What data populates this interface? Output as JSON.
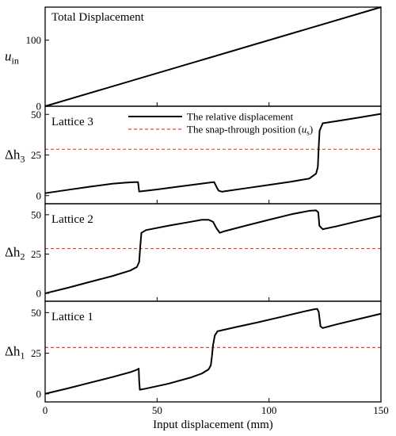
{
  "chart_data": [
    {
      "type": "line",
      "panel_label": "Total Displacement",
      "ylabel": {
        "base": "u",
        "sub": "in"
      },
      "ylim": [
        0,
        150
      ],
      "yticks": [
        0,
        100
      ],
      "xlim": [
        0,
        150
      ],
      "series": [
        {
          "points": [
            [
              0,
              0
            ],
            [
              150,
              150
            ]
          ]
        }
      ]
    },
    {
      "type": "line",
      "panel_label": "Lattice 3",
      "ylabel": {
        "base": "Δh",
        "sub": "3"
      },
      "ylim": [
        -5,
        55
      ],
      "yticks": [
        0,
        25,
        50
      ],
      "xlim": [
        0,
        150
      ],
      "reference_line": {
        "y": 28.5
      },
      "legend": {
        "placement": "top-center",
        "entries": [
          {
            "label": "The relative displacement",
            "style": "solid",
            "color": "#000000"
          },
          {
            "label_pre": "The snap-through position (",
            "label_italic": "u",
            "label_sub": "s",
            "label_post": ")",
            "style": "dashed",
            "color": "#e8403a"
          }
        ]
      },
      "series": [
        {
          "points": [
            [
              0,
              1.5
            ],
            [
              10,
              3.5
            ],
            [
              20,
              5.5
            ],
            [
              30,
              7.3
            ],
            [
              36,
              8.0
            ],
            [
              40,
              8.3
            ],
            [
              41.5,
              8.3
            ],
            [
              42,
              2.5
            ],
            [
              50,
              3.8
            ],
            [
              60,
              5.6
            ],
            [
              70,
              7.4
            ],
            [
              74,
              8.1
            ],
            [
              75.5,
              8.3
            ],
            [
              76.5,
              5.5
            ],
            [
              77.5,
              3.0
            ],
            [
              79,
              2.4
            ],
            [
              80,
              2.6
            ],
            [
              90,
              4.6
            ],
            [
              100,
              6.6
            ],
            [
              110,
              8.6
            ],
            [
              118,
              10.5
            ],
            [
              121,
              13.5
            ],
            [
              121.8,
              17.5
            ],
            [
              122.2,
              30
            ],
            [
              122.6,
              40
            ],
            [
              124,
              44.5
            ],
            [
              130,
              45.8
            ],
            [
              140,
              48.0
            ],
            [
              150,
              50.3
            ]
          ]
        }
      ]
    },
    {
      "type": "line",
      "panel_label": "Lattice 2",
      "ylabel": {
        "base": "Δh",
        "sub": "2"
      },
      "ylim": [
        -5,
        57
      ],
      "yticks": [
        0,
        25,
        50
      ],
      "xlim": [
        0,
        150
      ],
      "reference_line": {
        "y": 28.5
      },
      "series": [
        {
          "points": [
            [
              0,
              0
            ],
            [
              10,
              3.5
            ],
            [
              20,
              7.3
            ],
            [
              30,
              11.0
            ],
            [
              38,
              14.5
            ],
            [
              41,
              16.8
            ],
            [
              42,
              20
            ],
            [
              42.5,
              30
            ],
            [
              43,
              38.5
            ],
            [
              45,
              40.2
            ],
            [
              55,
              43.0
            ],
            [
              65,
              45.5
            ],
            [
              70,
              46.8
            ],
            [
              73,
              46.8
            ],
            [
              75,
              45.5
            ],
            [
              76.5,
              41.5
            ],
            [
              78,
              38.5
            ],
            [
              80,
              39.5
            ],
            [
              90,
              43.2
            ],
            [
              100,
              46.8
            ],
            [
              110,
              50.3
            ],
            [
              118,
              52.5
            ],
            [
              121,
              52.8
            ],
            [
              122,
              51.5
            ],
            [
              122.5,
              43.0
            ],
            [
              124,
              40.8
            ],
            [
              130,
              42.6
            ],
            [
              140,
              46.0
            ],
            [
              150,
              49.3
            ]
          ]
        }
      ]
    },
    {
      "type": "line",
      "panel_label": "Lattice 1",
      "ylabel": {
        "base": "Δh",
        "sub": "1"
      },
      "ylim": [
        -5,
        57
      ],
      "yticks": [
        0,
        25,
        50
      ],
      "xlim": [
        0,
        150
      ],
      "xlabel": "Input displacement (mm)",
      "xticks": [
        0,
        50,
        100,
        150
      ],
      "reference_line": {
        "y": 28.5
      },
      "series": [
        {
          "points": [
            [
              0,
              0
            ],
            [
              10,
              3.3
            ],
            [
              20,
              6.8
            ],
            [
              30,
              10.3
            ],
            [
              38,
              13.3
            ],
            [
              41,
              14.8
            ],
            [
              41.8,
              15.5
            ],
            [
              42,
              8
            ],
            [
              42.3,
              2.5
            ],
            [
              45,
              3.2
            ],
            [
              55,
              6.2
            ],
            [
              65,
              10.0
            ],
            [
              70,
              12.5
            ],
            [
              73,
              15.0
            ],
            [
              74,
              17.5
            ],
            [
              74.5,
              23
            ],
            [
              75,
              30
            ],
            [
              75.8,
              36
            ],
            [
              77,
              38.5
            ],
            [
              85,
              41.0
            ],
            [
              95,
              44.0
            ],
            [
              105,
              47.2
            ],
            [
              115,
              50.5
            ],
            [
              120,
              52.0
            ],
            [
              121.5,
              52.3
            ],
            [
              122.2,
              50.5
            ],
            [
              123,
              41.5
            ],
            [
              124,
              40.5
            ],
            [
              130,
              42.7
            ],
            [
              140,
              46.0
            ],
            [
              150,
              49.3
            ]
          ]
        }
      ]
    }
  ]
}
